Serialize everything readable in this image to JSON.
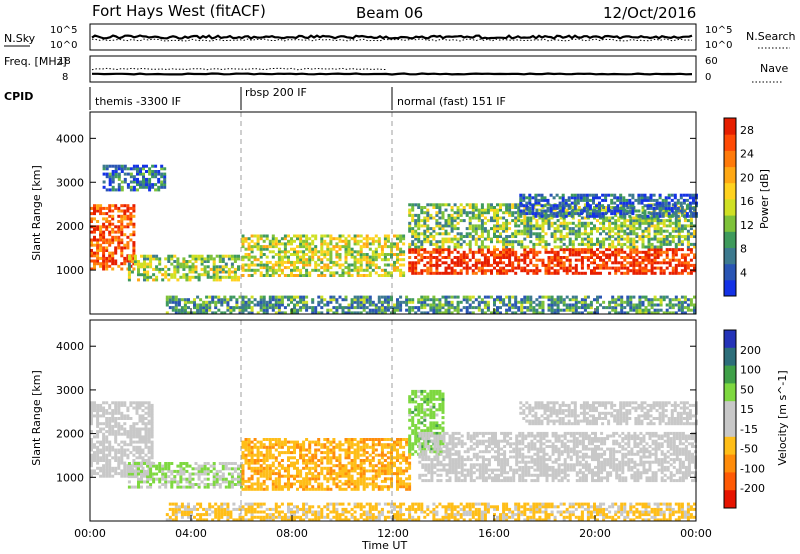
{
  "header": {
    "station": "Fort Hays West (fitACF)",
    "beam": "Beam 06",
    "date": "12/Oct/2016"
  },
  "chart_data": [
    {
      "type": "line",
      "name": "noise",
      "left_label": "N.Sky",
      "right_label": "N.Search",
      "left_ticks": [
        "10^5",
        "10^0"
      ],
      "right_ticks": [
        "10^5",
        "10^0"
      ]
    },
    {
      "type": "line",
      "name": "frequency",
      "left_label": "Freq. [MHz]",
      "right_label": "Nave",
      "left_ticks": [
        "18",
        "8"
      ],
      "right_ticks": [
        "60",
        "0"
      ]
    },
    {
      "type": "table",
      "name": "cpid",
      "label": "CPID",
      "modes": [
        {
          "label": "themis -3300 IF",
          "start_hour": 0,
          "end_hour": 6
        },
        {
          "label": "rbsp 200 IF",
          "start_hour": 6,
          "end_hour": 12
        },
        {
          "label": "normal (fast) 151 IF",
          "start_hour": 12,
          "end_hour": 24
        }
      ]
    },
    {
      "type": "heatmap",
      "name": "power",
      "ylabel": "Slant Range [km]",
      "yticks": [
        1000,
        2000,
        3000,
        4000
      ],
      "ylim": [
        0,
        4600
      ],
      "colorbar": {
        "label": "Power [dB]",
        "ticks": [
          "4",
          "8",
          "12",
          "16",
          "20",
          "24",
          "28"
        ],
        "colors": [
          "#1432e6",
          "#2a55b4",
          "#3d7a8f",
          "#3f9a5c",
          "#7ec23a",
          "#cfe024",
          "#ffd21f",
          "#ffa814",
          "#ff7a0a",
          "#ff4a05",
          "#e61e00"
        ]
      },
      "regions": [
        {
          "t": [
            0.0,
            1.8
          ],
          "r": [
            1000,
            2500
          ],
          "level": 0.85
        },
        {
          "t": [
            0.5,
            3.0
          ],
          "r": [
            2800,
            3400
          ],
          "level": 0.2
        },
        {
          "t": [
            1.5,
            5.9
          ],
          "r": [
            750,
            1300
          ],
          "level": 0.45
        },
        {
          "t": [
            6.0,
            12.4
          ],
          "r": [
            850,
            1800
          ],
          "level": 0.5
        },
        {
          "t": [
            12.6,
            24.0
          ],
          "r": [
            900,
            1500
          ],
          "level": 0.95
        },
        {
          "t": [
            12.6,
            24.0
          ],
          "r": [
            1500,
            2500
          ],
          "level": 0.4
        },
        {
          "t": [
            17.0,
            24.0
          ],
          "r": [
            2200,
            2700
          ],
          "level": 0.15
        },
        {
          "t": [
            3.0,
            24.0
          ],
          "r": [
            0,
            400
          ],
          "level": 0.3
        }
      ]
    },
    {
      "type": "heatmap",
      "name": "velocity",
      "ylabel": "Slant Range [km]",
      "xlabel": "Time UT",
      "xticks": [
        "00:00",
        "04:00",
        "08:00",
        "12:00",
        "16:00",
        "20:00",
        "00:00"
      ],
      "xlim_hours": [
        0,
        24
      ],
      "yticks": [
        1000,
        2000,
        3000,
        4000
      ],
      "ylim": [
        0,
        4600
      ],
      "colorbar": {
        "label": "Velocity [m s^-1]",
        "ticks": [
          "200",
          "100",
          "50",
          "15",
          "-15",
          "-50",
          "-100",
          "-200"
        ],
        "colors": [
          "#2433b8",
          "#2d6e7a",
          "#3fa048",
          "#7ed840",
          "#c8c8c8",
          "#c8c8c8",
          "#ffbe18",
          "#ff8c0a",
          "#ff5a05",
          "#e61400"
        ]
      },
      "regions": [
        {
          "t": [
            0.0,
            2.5
          ],
          "r": [
            1000,
            2700
          ],
          "v": 0.0
        },
        {
          "t": [
            1.5,
            6.0
          ],
          "r": [
            750,
            1300
          ],
          "v": 0.2
        },
        {
          "t": [
            6.0,
            12.6
          ],
          "r": [
            700,
            1900
          ],
          "v": -0.35
        },
        {
          "t": [
            12.6,
            14.0
          ],
          "r": [
            1500,
            3000
          ],
          "v": 0.3
        },
        {
          "t": [
            13.0,
            24.0
          ],
          "r": [
            900,
            2000
          ],
          "v": 0.0
        },
        {
          "t": [
            17.0,
            24.0
          ],
          "r": [
            2200,
            2700
          ],
          "v": 0.0
        },
        {
          "t": [
            3.0,
            24.0
          ],
          "r": [
            0,
            400
          ],
          "v": -0.25
        }
      ]
    }
  ]
}
